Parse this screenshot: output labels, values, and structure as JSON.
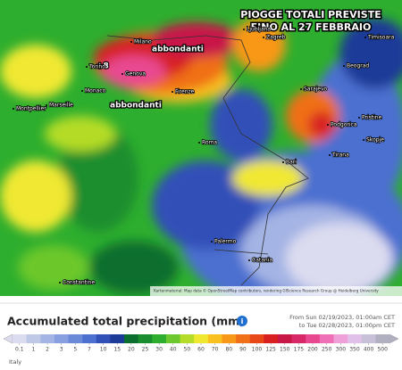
{
  "map": {
    "title_line1": "PIOGGE TOTALI PREVISTE",
    "title_line2": "FINO AL 27 FEBBRAIO",
    "annotations": [
      "abbondanti",
      "abbondanti",
      "+8"
    ],
    "cities": [
      "Ljubljana",
      "Zagreb",
      "Timisoara",
      "Milano",
      "Torino",
      "Genova",
      "Monaco",
      "Firenze",
      "Beograd",
      "Sarajevo",
      "Podgorica",
      "Pristine",
      "Skopje",
      "Tirana",
      "Roma",
      "Bari",
      "Palermo",
      "Catania",
      "Marseille",
      "Montpellier",
      "Constantine"
    ],
    "attribution": "Kartenmaterial: Map data © OpenStreetMap contributors, rendering GIScience Research Group @ Heidelberg University"
  },
  "legend": {
    "title": "Accumulated total precipitation (mm)",
    "period_from": "From Sun 02/19/2023, 01:00am CET",
    "period_to": "to Tue 02/28/2023, 01:00pm CET",
    "ticks": [
      0.1,
      1,
      2,
      3,
      5,
      7,
      10,
      15,
      20,
      25,
      30,
      40,
      50,
      60,
      70,
      80,
      90,
      100,
      125,
      150,
      175,
      200,
      250,
      300,
      350,
      400,
      500
    ],
    "colors": [
      "#dcdcf0",
      "#c0c8e8",
      "#a4b4e4",
      "#88a0e0",
      "#6a8ad8",
      "#4c70d0",
      "#3050b8",
      "#1c3a98",
      "#0a6e2e",
      "#1a8e2e",
      "#2eae2e",
      "#6cc82c",
      "#b4dc28",
      "#f0e830",
      "#f8c020",
      "#f89818",
      "#f07018",
      "#e84818",
      "#d82020",
      "#c81848",
      "#d82868",
      "#e84890",
      "#f070b8",
      "#f0a0d8",
      "#e0c0e8",
      "#c8c0d8",
      "#b0b0c0"
    ]
  },
  "footer": {
    "region": "Italy"
  }
}
